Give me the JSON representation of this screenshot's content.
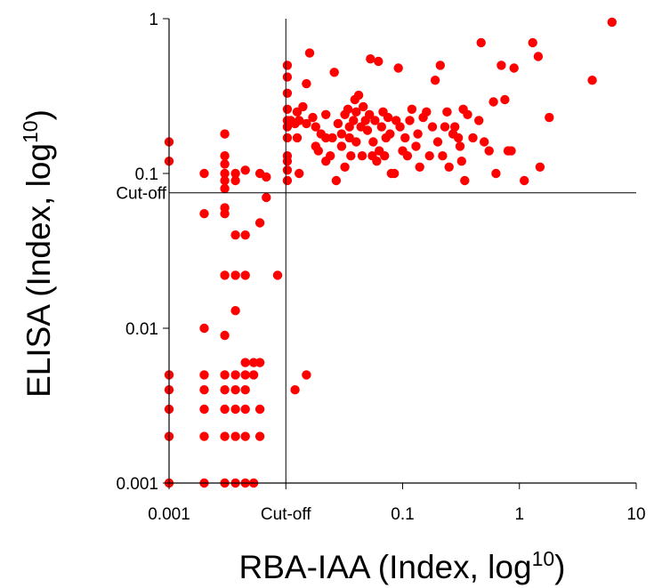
{
  "chart_data": {
    "type": "scatter",
    "xlabel": "RBA-IAA (Index, log",
    "xlabel_sup": "10",
    "xlabel_close": ")",
    "ylabel": "ELISA (Index, log",
    "ylabel_sup": "10",
    "ylabel_close": ")",
    "x_scale": "log",
    "y_scale": "log",
    "xlim": [
      0.001,
      10
    ],
    "ylim": [
      0.001,
      1
    ],
    "x_ticks": [
      {
        "value": 0.001,
        "label": "0.001"
      },
      {
        "value": 0.01,
        "label": "Cut-off"
      },
      {
        "value": 0.1,
        "label": "0.1"
      },
      {
        "value": 1,
        "label": "1"
      },
      {
        "value": 10,
        "label": "10"
      }
    ],
    "y_ticks": [
      {
        "value": 0.001,
        "label": "0.001"
      },
      {
        "value": 0.01,
        "label": "0.01"
      },
      {
        "value": 0.1,
        "label": "0.1"
      },
      {
        "value": 1,
        "label": "1"
      }
    ],
    "cutoffs": {
      "x": {
        "value": 0.01,
        "label": "Cut-off"
      },
      "y": {
        "value": 0.075,
        "label": "Cut-off"
      }
    },
    "marker_color": "#ff0000",
    "points": [
      [
        0.001,
        0.16
      ],
      [
        0.001,
        0.12
      ],
      [
        0.001,
        0.005
      ],
      [
        0.001,
        0.004
      ],
      [
        0.001,
        0.003
      ],
      [
        0.001,
        0.002
      ],
      [
        0.001,
        0.001
      ],
      [
        0.002,
        0.1
      ],
      [
        0.002,
        0.055
      ],
      [
        0.002,
        0.01
      ],
      [
        0.002,
        0.005
      ],
      [
        0.002,
        0.004
      ],
      [
        0.002,
        0.003
      ],
      [
        0.002,
        0.002
      ],
      [
        0.002,
        0.001
      ],
      [
        0.003,
        0.18
      ],
      [
        0.003,
        0.13
      ],
      [
        0.003,
        0.115
      ],
      [
        0.003,
        0.1
      ],
      [
        0.003,
        0.09
      ],
      [
        0.003,
        0.08
      ],
      [
        0.003,
        0.06
      ],
      [
        0.003,
        0.055
      ],
      [
        0.003,
        0.022
      ],
      [
        0.003,
        0.009
      ],
      [
        0.003,
        0.005
      ],
      [
        0.003,
        0.004
      ],
      [
        0.003,
        0.003
      ],
      [
        0.003,
        0.002
      ],
      [
        0.003,
        0.001
      ],
      [
        0.0037,
        0.1
      ],
      [
        0.0037,
        0.09
      ],
      [
        0.0037,
        0.04
      ],
      [
        0.0037,
        0.022
      ],
      [
        0.0037,
        0.013
      ],
      [
        0.0037,
        0.005
      ],
      [
        0.0037,
        0.004
      ],
      [
        0.0037,
        0.003
      ],
      [
        0.0037,
        0.002
      ],
      [
        0.0037,
        0.001
      ],
      [
        0.0045,
        0.105
      ],
      [
        0.0045,
        0.04
      ],
      [
        0.0045,
        0.022
      ],
      [
        0.0045,
        0.006
      ],
      [
        0.0045,
        0.005
      ],
      [
        0.0045,
        0.004
      ],
      [
        0.0045,
        0.003
      ],
      [
        0.0045,
        0.002
      ],
      [
        0.0045,
        0.001
      ],
      [
        0.0053,
        0.006
      ],
      [
        0.0053,
        0.005
      ],
      [
        0.0053,
        0.001
      ],
      [
        0.006,
        0.1
      ],
      [
        0.006,
        0.048
      ],
      [
        0.006,
        0.006
      ],
      [
        0.006,
        0.003
      ],
      [
        0.006,
        0.002
      ],
      [
        0.0068,
        0.095
      ],
      [
        0.0068,
        0.07
      ],
      [
        0.0085,
        0.022
      ],
      [
        0.0103,
        0.5
      ],
      [
        0.0103,
        0.42
      ],
      [
        0.0103,
        0.33
      ],
      [
        0.0103,
        0.26
      ],
      [
        0.0103,
        0.22
      ],
      [
        0.0103,
        0.2
      ],
      [
        0.0103,
        0.17
      ],
      [
        0.0103,
        0.13
      ],
      [
        0.0103,
        0.12
      ],
      [
        0.0103,
        0.105
      ],
      [
        0.0103,
        0.09
      ],
      [
        0.012,
        0.004
      ],
      [
        0.0125,
        0.25
      ],
      [
        0.0125,
        0.17
      ],
      [
        0.013,
        0.1
      ],
      [
        0.015,
        0.005
      ],
      [
        0.011,
        0.22
      ],
      [
        0.012,
        0.21
      ],
      [
        0.013,
        0.22
      ],
      [
        0.014,
        0.27
      ],
      [
        0.015,
        0.38
      ],
      [
        0.015,
        0.21
      ],
      [
        0.016,
        0.6
      ],
      [
        0.017,
        0.23
      ],
      [
        0.018,
        0.15
      ],
      [
        0.018,
        0.2
      ],
      [
        0.019,
        0.14
      ],
      [
        0.02,
        0.18
      ],
      [
        0.022,
        0.17
      ],
      [
        0.022,
        0.24
      ],
      [
        0.022,
        0.12
      ],
      [
        0.024,
        0.13
      ],
      [
        0.025,
        0.17
      ],
      [
        0.026,
        0.45
      ],
      [
        0.027,
        0.09
      ],
      [
        0.028,
        0.21
      ],
      [
        0.03,
        0.15
      ],
      [
        0.03,
        0.18
      ],
      [
        0.032,
        0.24
      ],
      [
        0.032,
        0.11
      ],
      [
        0.034,
        0.26
      ],
      [
        0.035,
        0.2
      ],
      [
        0.035,
        0.17
      ],
      [
        0.036,
        0.13
      ],
      [
        0.038,
        0.22
      ],
      [
        0.039,
        0.3
      ],
      [
        0.04,
        0.25
      ],
      [
        0.04,
        0.16
      ],
      [
        0.042,
        0.32
      ],
      [
        0.044,
        0.2
      ],
      [
        0.045,
        0.13
      ],
      [
        0.046,
        0.27
      ],
      [
        0.048,
        0.22
      ],
      [
        0.05,
        0.19
      ],
      [
        0.052,
        0.24
      ],
      [
        0.053,
        0.55
      ],
      [
        0.055,
        0.13
      ],
      [
        0.056,
        0.16
      ],
      [
        0.058,
        0.22
      ],
      [
        0.06,
        0.12
      ],
      [
        0.062,
        0.53
      ],
      [
        0.063,
        0.14
      ],
      [
        0.066,
        0.2
      ],
      [
        0.068,
        0.25
      ],
      [
        0.07,
        0.13
      ],
      [
        0.072,
        0.17
      ],
      [
        0.075,
        0.23
      ],
      [
        0.078,
        0.18
      ],
      [
        0.08,
        0.1
      ],
      [
        0.085,
        0.1
      ],
      [
        0.088,
        0.22
      ],
      [
        0.092,
        0.48
      ],
      [
        0.095,
        0.2
      ],
      [
        0.1,
        0.14
      ],
      [
        0.105,
        0.17
      ],
      [
        0.11,
        0.13
      ],
      [
        0.115,
        0.22
      ],
      [
        0.12,
        0.26
      ],
      [
        0.13,
        0.15
      ],
      [
        0.135,
        0.18
      ],
      [
        0.14,
        0.11
      ],
      [
        0.15,
        0.23
      ],
      [
        0.16,
        0.25
      ],
      [
        0.17,
        0.13
      ],
      [
        0.18,
        0.2
      ],
      [
        0.19,
        0.4
      ],
      [
        0.2,
        0.16
      ],
      [
        0.21,
        0.5
      ],
      [
        0.22,
        0.13
      ],
      [
        0.23,
        0.2
      ],
      [
        0.24,
        0.25
      ],
      [
        0.25,
        0.11
      ],
      [
        0.27,
        0.18
      ],
      [
        0.28,
        0.2
      ],
      [
        0.3,
        0.17
      ],
      [
        0.31,
        0.15
      ],
      [
        0.32,
        0.12
      ],
      [
        0.33,
        0.26
      ],
      [
        0.34,
        0.09
      ],
      [
        0.36,
        0.24
      ],
      [
        0.4,
        0.17
      ],
      [
        0.45,
        0.22
      ],
      [
        0.47,
        0.7
      ],
      [
        0.5,
        0.16
      ],
      [
        0.55,
        0.14
      ],
      [
        0.6,
        0.29
      ],
      [
        0.63,
        0.1
      ],
      [
        0.7,
        0.5
      ],
      [
        0.75,
        0.3
      ],
      [
        0.8,
        0.14
      ],
      [
        0.85,
        0.14
      ],
      [
        0.9,
        0.48
      ],
      [
        1.1,
        0.09
      ],
      [
        1.3,
        0.7
      ],
      [
        1.45,
        0.57
      ],
      [
        1.5,
        0.11
      ],
      [
        1.8,
        0.23
      ],
      [
        4.2,
        0.4
      ],
      [
        6.2,
        0.95
      ]
    ]
  }
}
